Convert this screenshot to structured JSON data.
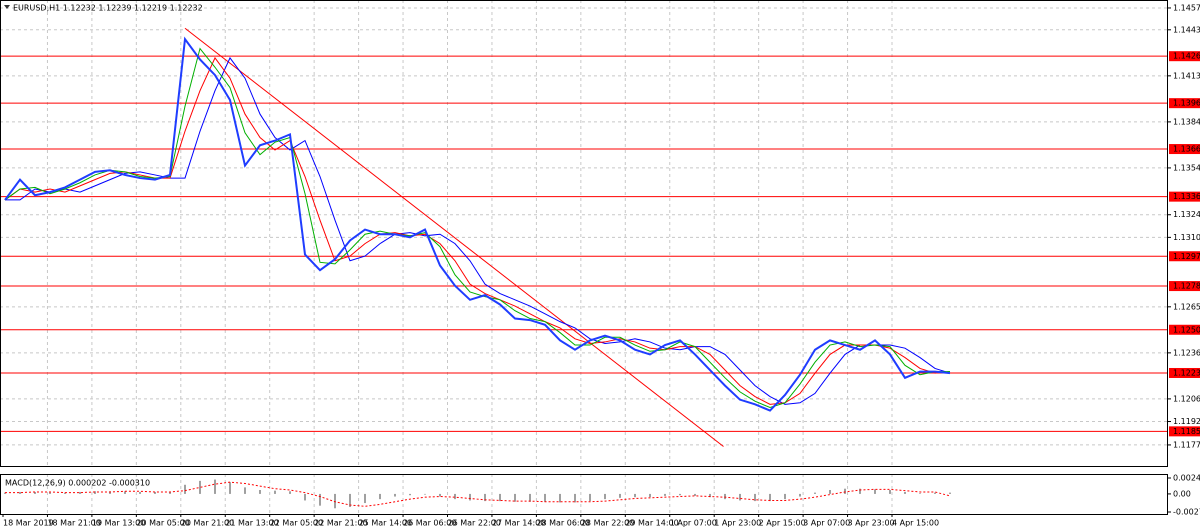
{
  "chart_data": [
    {
      "type": "line",
      "title": "EURUSD,H1  1.12232 1.12239 1.12219 1.12232",
      "ylim": [
        1.11635,
        1.14621
      ],
      "yticks": [
        {
          "value": 1.1457,
          "label": "1.14570"
        },
        {
          "value": 1.1443,
          "label": "1.14430"
        },
        1.14135,
        {
          "value": 1.1384,
          "label": "1.13840"
        },
        1.13545,
        1.13245,
        {
          "value": 1.131,
          "label": "1.13100"
        },
        1.12655,
        {
          "value": 1.1236,
          "label": "1.12360"
        },
        1.12065,
        {
          "value": 1.1192,
          "label": "1.11920"
        },
        {
          "value": 1.1177,
          "label": "1.11770"
        }
      ],
      "xticks": [
        "18 Mar 2019",
        "18 Mar 21:00",
        "19 Mar 13:00",
        "20 Mar 05:00",
        "20 Mar 21:00",
        "21 Mar 13:00",
        "22 Mar 05:00",
        "22 Mar 21:00",
        "25 Mar 14:00",
        "26 Mar 06:00",
        "26 Mar 22:00",
        "27 Mar 14:00",
        "28 Mar 06:00",
        "28 Mar 22:00",
        "29 Mar 14:00",
        "1 Apr 07:00",
        "1 Apr 23:00",
        "2 Apr 15:00",
        "3 Apr 07:00",
        "3 Apr 23:00",
        "4 Apr 15:00"
      ],
      "grid": true,
      "levels": {
        "color": "#ff0000",
        "values": [
          1.14261,
          {
            "value": 1.1396,
            "label": "1.13960"
          },
          1.13666,
          1.13361,
          1.12979,
          1.12788,
          1.12508,
          1.12231,
          1.11857
        ]
      },
      "trendline": {
        "color": "#ff0000",
        "x": [
          12,
          47.9
        ],
        "values": [
          1.1444,
          1.1176
        ]
      },
      "series": [
        {
          "color": "#1f3dff",
          "width": 2,
          "values": [
            1.1334,
            1.1347,
            1.1337,
            1.1339,
            1.1342,
            1.1347,
            1.1352,
            1.1353,
            1.135,
            1.1348,
            1.1347,
            1.135,
            1.1437,
            1.1424,
            1.1414,
            1.1398,
            1.1356,
            1.1369,
            1.1372,
            1.1376,
            1.1299,
            1.1289,
            1.1296,
            1.1308,
            1.1315,
            1.1312,
            1.1312,
            1.131,
            1.1315,
            1.1292,
            1.1279,
            1.127,
            1.1273,
            1.1267,
            1.1258,
            1.1257,
            1.1254,
            1.1244,
            1.1238,
            1.1244,
            1.1247,
            1.1244,
            1.1238,
            1.1235,
            1.1241,
            1.1244,
            1.1235,
            1.1225,
            1.1215,
            1.1206,
            1.1203,
            1.1199,
            1.1209,
            1.1222,
            1.1238,
            1.1244,
            1.1241,
            1.1238,
            1.1244,
            1.1235,
            1.122,
            1.1224,
            1.1224,
            1.1223
          ]
        },
        {
          "color": "#00b000",
          "width": 1,
          "values": [
            1.1334,
            1.1341,
            1.1342,
            1.1338,
            1.1341,
            1.1345,
            1.135,
            1.1353,
            1.1352,
            1.1349,
            1.1348,
            1.1349,
            1.1394,
            1.1431,
            1.1419,
            1.1406,
            1.1377,
            1.1363,
            1.1371,
            1.1374,
            1.1338,
            1.1294,
            1.1293,
            1.1302,
            1.1312,
            1.1314,
            1.1312,
            1.1311,
            1.1313,
            1.1304,
            1.1286,
            1.1275,
            1.1272,
            1.127,
            1.1263,
            1.1258,
            1.1256,
            1.1249,
            1.1241,
            1.1241,
            1.1246,
            1.1246,
            1.1241,
            1.1237,
            1.1238,
            1.1243,
            1.124,
            1.123,
            1.122,
            1.1211,
            1.1205,
            1.1201,
            1.1204,
            1.1216,
            1.123,
            1.1241,
            1.1243,
            1.124,
            1.1241,
            1.124,
            1.1228,
            1.1222,
            1.1224,
            1.1224
          ]
        },
        {
          "color": "#ff0000",
          "width": 1,
          "values": [
            1.1334,
            1.1341,
            1.1339,
            1.1341,
            1.1339,
            1.1343,
            1.1347,
            1.1351,
            1.1352,
            1.135,
            1.1348,
            1.1348,
            1.1378,
            1.1404,
            1.1425,
            1.1412,
            1.1389,
            1.1374,
            1.1366,
            1.1372,
            1.1349,
            1.1321,
            1.1295,
            1.1298,
            1.1306,
            1.1312,
            1.1313,
            1.1311,
            1.1312,
            1.1306,
            1.1295,
            1.128,
            1.1274,
            1.127,
            1.1266,
            1.1261,
            1.1256,
            1.1252,
            1.1245,
            1.1242,
            1.1243,
            1.1245,
            1.1243,
            1.1239,
            1.1238,
            1.124,
            1.124,
            1.1235,
            1.1225,
            1.1215,
            1.1208,
            1.1203,
            1.1204,
            1.121,
            1.1223,
            1.1235,
            1.1241,
            1.1241,
            1.1241,
            1.1239,
            1.1233,
            1.1226,
            1.1223,
            1.1224
          ]
        },
        {
          "color": "#0000ff",
          "width": 1,
          "values": [
            1.1334,
            1.1334,
            1.1341,
            1.1339,
            1.1341,
            1.1339,
            1.1343,
            1.1347,
            1.1351,
            1.1352,
            1.135,
            1.1348,
            1.1348,
            1.1378,
            1.1404,
            1.1425,
            1.1412,
            1.1389,
            1.1374,
            1.1366,
            1.1372,
            1.1349,
            1.1321,
            1.1295,
            1.1298,
            1.1306,
            1.1312,
            1.1313,
            1.1311,
            1.1312,
            1.1306,
            1.1295,
            1.128,
            1.1274,
            1.127,
            1.1266,
            1.1261,
            1.1256,
            1.1252,
            1.1245,
            1.1242,
            1.1243,
            1.1245,
            1.1243,
            1.1239,
            1.1238,
            1.124,
            1.124,
            1.1235,
            1.1225,
            1.1215,
            1.1208,
            1.1203,
            1.1204,
            1.121,
            1.1223,
            1.1235,
            1.1241,
            1.1241,
            1.1241,
            1.1239,
            1.1233,
            1.1226,
            1.1223
          ]
        }
      ]
    },
    {
      "type": "macd",
      "title": "MACD(12,26,9) 0.000202 -0.000310",
      "ylim": [
        -0.00277,
        0.002438
      ],
      "yticks": [
        0.002438,
        {
          "value": 0,
          "label": "0.00"
        },
        -0.00277
      ],
      "series": [
        {
          "type": "bar",
          "color": "#a0a0a0",
          "values": [
            0.0002,
            0.0003,
            0.0003,
            0.0002,
            0.0002,
            0.0003,
            0.0004,
            0.0004,
            0.0004,
            0.0003,
            0.0003,
            0.0003,
            0.0014,
            0.002,
            0.0022,
            0.0018,
            0.001,
            0.0006,
            0.0005,
            0.0004,
            -0.001,
            -0.0018,
            -0.0022,
            -0.002,
            -0.0014,
            -0.0008,
            -0.0004,
            -0.0002,
            -0.0001,
            -0.0004,
            -0.0008,
            -0.001,
            -0.0011,
            -0.0011,
            -0.0012,
            -0.0012,
            -0.0012,
            -0.0013,
            -0.0013,
            -0.0011,
            -0.0008,
            -0.0006,
            -0.0005,
            -0.0005,
            -0.0003,
            -0.0002,
            -0.0003,
            -0.0005,
            -0.0008,
            -0.001,
            -0.0011,
            -0.0011,
            -0.0008,
            -0.0004,
            0.0002,
            0.0006,
            0.0008,
            0.0008,
            0.0007,
            0.0006,
            0.0003,
            0.0001,
            0.0002,
            0.0002
          ]
        },
        {
          "type": "line",
          "color": "#ff0000",
          "dashed": true,
          "values": [
            0.0002,
            0.0002,
            0.0003,
            0.0003,
            0.0002,
            0.0002,
            0.0003,
            0.0003,
            0.0004,
            0.0004,
            0.0003,
            0.0003,
            0.0005,
            0.001,
            0.0015,
            0.0018,
            0.0016,
            0.0012,
            0.0008,
            0.0006,
            0.0002,
            -0.0004,
            -0.0012,
            -0.0017,
            -0.0019,
            -0.0016,
            -0.0012,
            -0.0008,
            -0.0005,
            -0.0004,
            -0.0005,
            -0.0007,
            -0.0009,
            -0.001,
            -0.0011,
            -0.0011,
            -0.0012,
            -0.0012,
            -0.0012,
            -0.0012,
            -0.0011,
            -0.0009,
            -0.0007,
            -0.0006,
            -0.0005,
            -0.0004,
            -0.0003,
            -0.0004,
            -0.0005,
            -0.0007,
            -0.0009,
            -0.001,
            -0.001,
            -0.0008,
            -0.0005,
            -0.0001,
            0.0003,
            0.0006,
            0.0007,
            0.0007,
            0.0005,
            0.0003,
            0.0003,
            -0.0003
          ]
        }
      ]
    }
  ]
}
